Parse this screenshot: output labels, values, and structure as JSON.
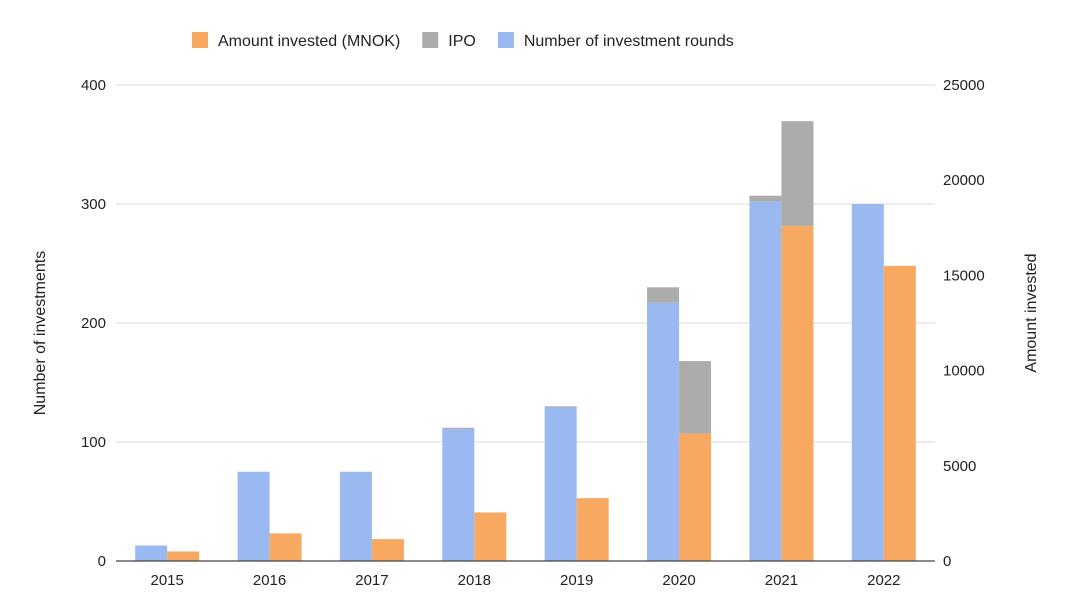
{
  "chart_data": {
    "type": "bar",
    "categories": [
      "2015",
      "2016",
      "2017",
      "2018",
      "2019",
      "2020",
      "2021",
      "2022"
    ],
    "series": [
      {
        "name": "Number of investment rounds",
        "axis": "left",
        "stack": "rounds",
        "color": "#9ab9f1",
        "values": [
          13,
          75,
          75,
          111,
          129,
          217,
          302,
          300
        ]
      },
      {
        "name": "IPO",
        "axis": "left",
        "stack": "rounds",
        "color": "#acacac",
        "values": [
          0,
          0,
          0,
          1,
          1,
          13,
          5,
          0
        ]
      },
      {
        "name": "Amount invested (MNOK)",
        "axis": "right",
        "stack": "amount",
        "color": "#f8a961",
        "values": [
          500,
          1450,
          1150,
          2550,
          3300,
          6700,
          17600,
          15500
        ]
      },
      {
        "name": "IPO",
        "axis": "right",
        "stack": "amount",
        "color": "#acacac",
        "values": [
          0,
          0,
          0,
          0,
          0,
          3800,
          5500,
          0
        ]
      }
    ],
    "legend": {
      "position": "top",
      "items": [
        {
          "label": "Amount invested (MNOK)",
          "color": "#f8a961"
        },
        {
          "label": "IPO",
          "color": "#acacac"
        },
        {
          "label": "Number of investment rounds",
          "color": "#9ab9f1"
        }
      ]
    },
    "ylabel_left": "Number of investments",
    "ylabel_right": "Amount invested",
    "ylim_left": [
      0,
      400
    ],
    "yticks_left": [
      "0",
      "100",
      "200",
      "300",
      "400"
    ],
    "ylim_right": [
      0,
      25000
    ],
    "yticks_right": [
      "0",
      "5000",
      "10000",
      "15000",
      "20000",
      "25000"
    ],
    "grid": true
  }
}
